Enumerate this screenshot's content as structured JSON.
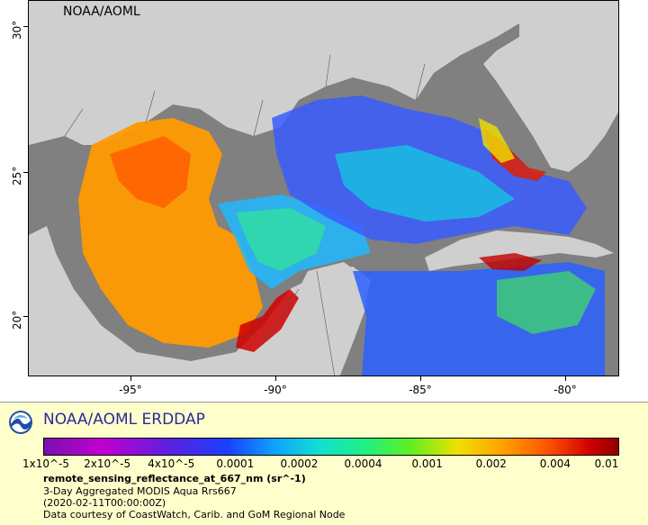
{
  "map": {
    "credit": "NOAA/AOML",
    "lat_labels": [
      "30°",
      "25°",
      "20°"
    ],
    "lon_labels": [
      "-95°",
      "-90°",
      "-85°",
      "-80°"
    ],
    "colors": {
      "land": "#cfcfcf",
      "no_data": "#808080"
    }
  },
  "legend": {
    "brand": "NOAA/AOML ERDDAP",
    "logo_icon": "noaa-logo",
    "colorbar_ticks": [
      "1x10^-5",
      "2x10^-5",
      "4x10^-5",
      "0.0001",
      "0.0002",
      "0.0004",
      "0.001",
      "0.002",
      "0.004",
      "0.01"
    ],
    "variable": "remote_sensing_reflectance_at_667_nm (sr^-1)",
    "dataset": "3-Day Aggregated MODIS Aqua Rrs667",
    "time": "(2020-02-11T00:00:00Z)",
    "courtesy": "Data courtesy of CoastWatch, Carib. and GoM Regional Node"
  }
}
